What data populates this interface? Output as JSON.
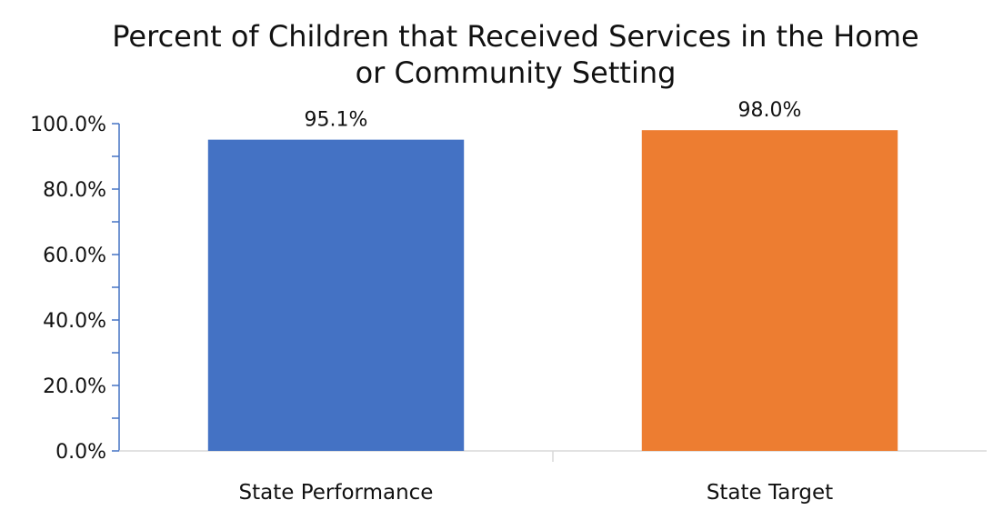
{
  "chart_data": {
    "type": "bar",
    "title_lines": [
      "Percent of Children that Received Services in the Home",
      "or Community Setting"
    ],
    "categories": [
      "State Performance",
      "State Target"
    ],
    "values": [
      95.1,
      98.0
    ],
    "value_labels": [
      "95.1%",
      "98.0%"
    ],
    "bar_colors": [
      "#4472C4",
      "#ED7D31"
    ],
    "ylim": [
      0,
      100
    ],
    "y_ticks": [
      0,
      20,
      40,
      60,
      80,
      100
    ],
    "y_tick_labels": [
      "0.0%",
      "20.0%",
      "40.0%",
      "60.0%",
      "80.0%",
      "100.0%"
    ],
    "xlabel": "",
    "ylabel": "",
    "grid": false,
    "legend": "none",
    "axis_color": "#4472C4"
  }
}
